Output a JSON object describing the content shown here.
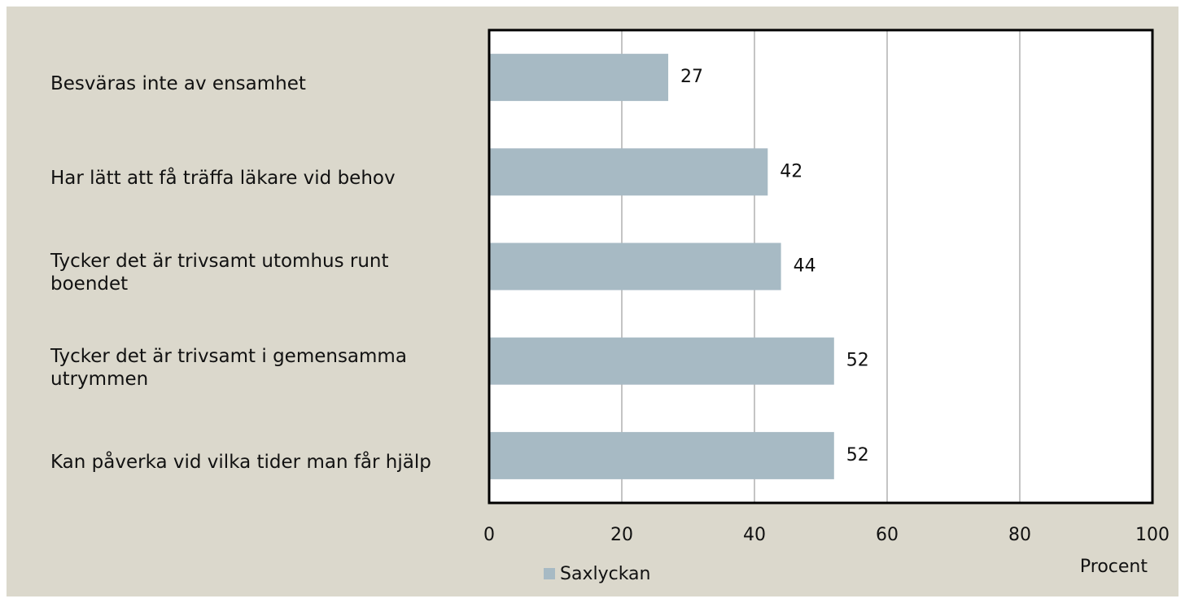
{
  "chart_data": {
    "type": "barh",
    "categories": [
      "Besväras inte av ensamhet",
      "Har lätt att få träffa läkare vid behov",
      "Tycker det är trivsamt utomhus runt boendet",
      "Tycker det är trivsamt i gemensamma utrymmen",
      "Kan påverka vid vilka tider man får hjälp"
    ],
    "series": [
      {
        "name": "Saxlyckan",
        "color": "#a7bac4",
        "values": [
          27,
          42,
          44,
          52,
          52
        ]
      }
    ],
    "xlabel": "Procent",
    "xlim": [
      0,
      100
    ],
    "xticks": [
      0,
      20,
      40,
      60,
      80,
      100
    ],
    "grid": true,
    "legend": "bottom"
  }
}
